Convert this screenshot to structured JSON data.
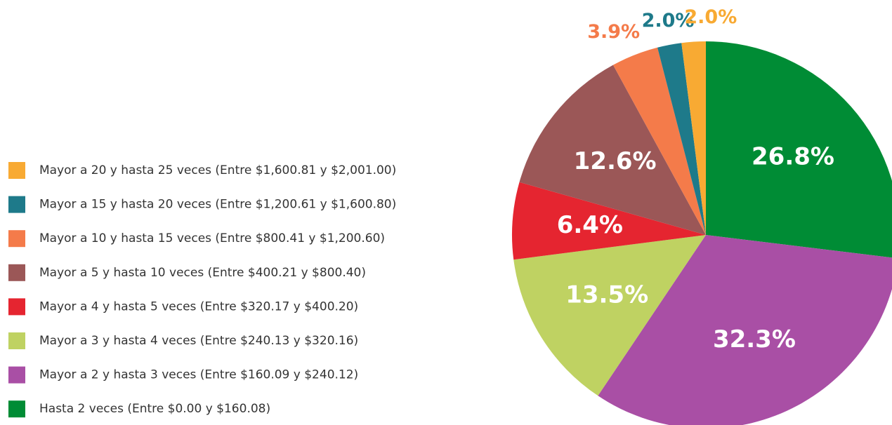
{
  "chart_data": {
    "type": "pie",
    "categories": [
      "Hasta 2 veces (Entre $0.00 y $160.08)",
      "Mayor a 2 y hasta 3 veces (Entre $160.09 y $240.12)",
      "Mayor a 3 y hasta 4 veces (Entre $240.13 y $320.16)",
      "Mayor a 4 y hasta 5 veces (Entre $320.17 y $400.20)",
      "Mayor a 5 y hasta 10 veces (Entre $400.21 y $800.40)",
      "Mayor a 10 y hasta 15 veces (Entre $800.41 y $1,200.60)",
      "Mayor a 15 y hasta 20 veces (Entre $1,200.61 y $1,600.80)",
      "Mayor a 20 y hasta 25 veces (Entre $1,600.81 y $2,001.00)"
    ],
    "values": [
      26.8,
      32.3,
      13.5,
      6.4,
      12.6,
      3.9,
      2.0,
      2.0
    ],
    "value_labels": [
      "26.8%",
      "32.3%",
      "13.5%",
      "6.4%",
      "12.6%",
      "3.9%",
      "2.0%",
      "2.0%"
    ],
    "colors": [
      "#008c35",
      "#a94fa5",
      "#bfd262",
      "#e52530",
      "#9b5757",
      "#f47b4a",
      "#1e7a8a",
      "#f8aa33"
    ]
  }
}
